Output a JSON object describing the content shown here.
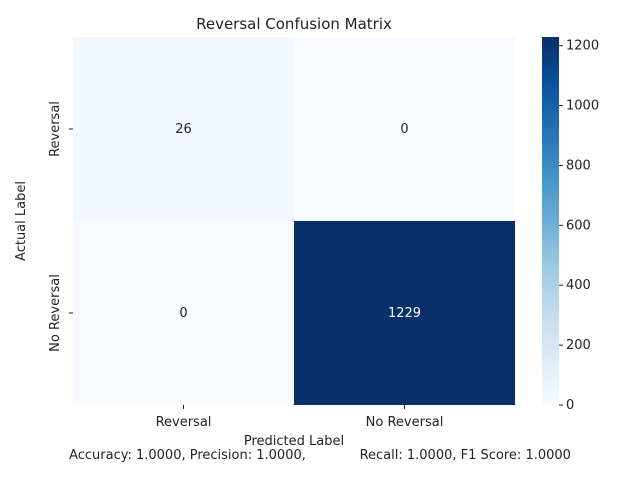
{
  "chart_data": {
    "type": "heatmap",
    "title": "Reversal Confusion Matrix",
    "xlabel": "Predicted Label",
    "ylabel": "Actual Label",
    "x_categories": [
      "Reversal",
      "No Reversal"
    ],
    "y_categories": [
      "Reversal",
      "No Reversal"
    ],
    "values": [
      [
        26,
        0
      ],
      [
        0,
        1229
      ]
    ],
    "cell_labels": [
      [
        "26",
        "0"
      ],
      [
        "0",
        "1229"
      ]
    ],
    "colorbar": {
      "range": [
        0,
        1229
      ],
      "ticks": [
        "0",
        "200",
        "400",
        "600",
        "800",
        "1000",
        "1200"
      ],
      "colormap": "Blues"
    },
    "grid": false
  },
  "footer": {
    "metrics_text": "Accuracy: 1.0000, Precision: 1.0000,             Recall: 1.0000, F1 Score: 1.0000"
  },
  "colors": {
    "low": "#f7fbff",
    "high": "#08306b"
  }
}
